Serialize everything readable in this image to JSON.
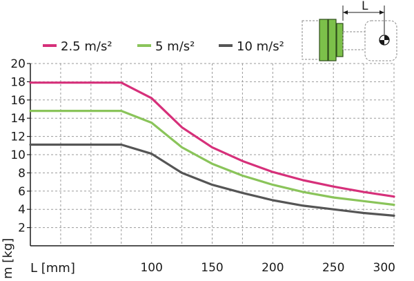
{
  "chart_data": {
    "type": "line",
    "xlabel": "L [mm]",
    "ylabel": "m [kg]",
    "xlim": [
      0,
      300
    ],
    "ylim": [
      0,
      20
    ],
    "x_ticks": [
      100,
      150,
      200,
      250,
      300
    ],
    "y_ticks": [
      2,
      4,
      6,
      8,
      10,
      12,
      14,
      16,
      18,
      20
    ],
    "grid": true,
    "legend_position": "top",
    "series": [
      {
        "name": "2.5 m/s²",
        "color": "#d6307a",
        "x": [
          0,
          75,
          100,
          125,
          150,
          175,
          200,
          225,
          250,
          275,
          300
        ],
        "y": [
          17.9,
          17.9,
          16.2,
          13.0,
          10.8,
          9.3,
          8.1,
          7.2,
          6.5,
          5.9,
          5.4
        ]
      },
      {
        "name": "5 m/s²",
        "color": "#8ac45a",
        "x": [
          0,
          75,
          100,
          125,
          150,
          175,
          200,
          225,
          250,
          275,
          300
        ],
        "y": [
          14.8,
          14.8,
          13.5,
          10.8,
          9.0,
          7.7,
          6.7,
          5.9,
          5.3,
          4.9,
          4.5
        ]
      },
      {
        "name": "10 m/s²",
        "color": "#555555",
        "x": [
          0,
          75,
          100,
          125,
          150,
          175,
          200,
          225,
          250,
          275,
          300
        ],
        "y": [
          11.1,
          11.1,
          10.1,
          8.0,
          6.7,
          5.8,
          5.0,
          4.4,
          4.0,
          3.6,
          3.3
        ]
      }
    ]
  },
  "diagram": {
    "label": "L"
  },
  "colors": {
    "grid": "#9a9a9a",
    "axis": "#1a1a1a",
    "gripper_green": "#7cc04a",
    "outline": "#8a8a8a"
  },
  "icons": {
    "diagram": "gripper-load-diagram-icon"
  }
}
